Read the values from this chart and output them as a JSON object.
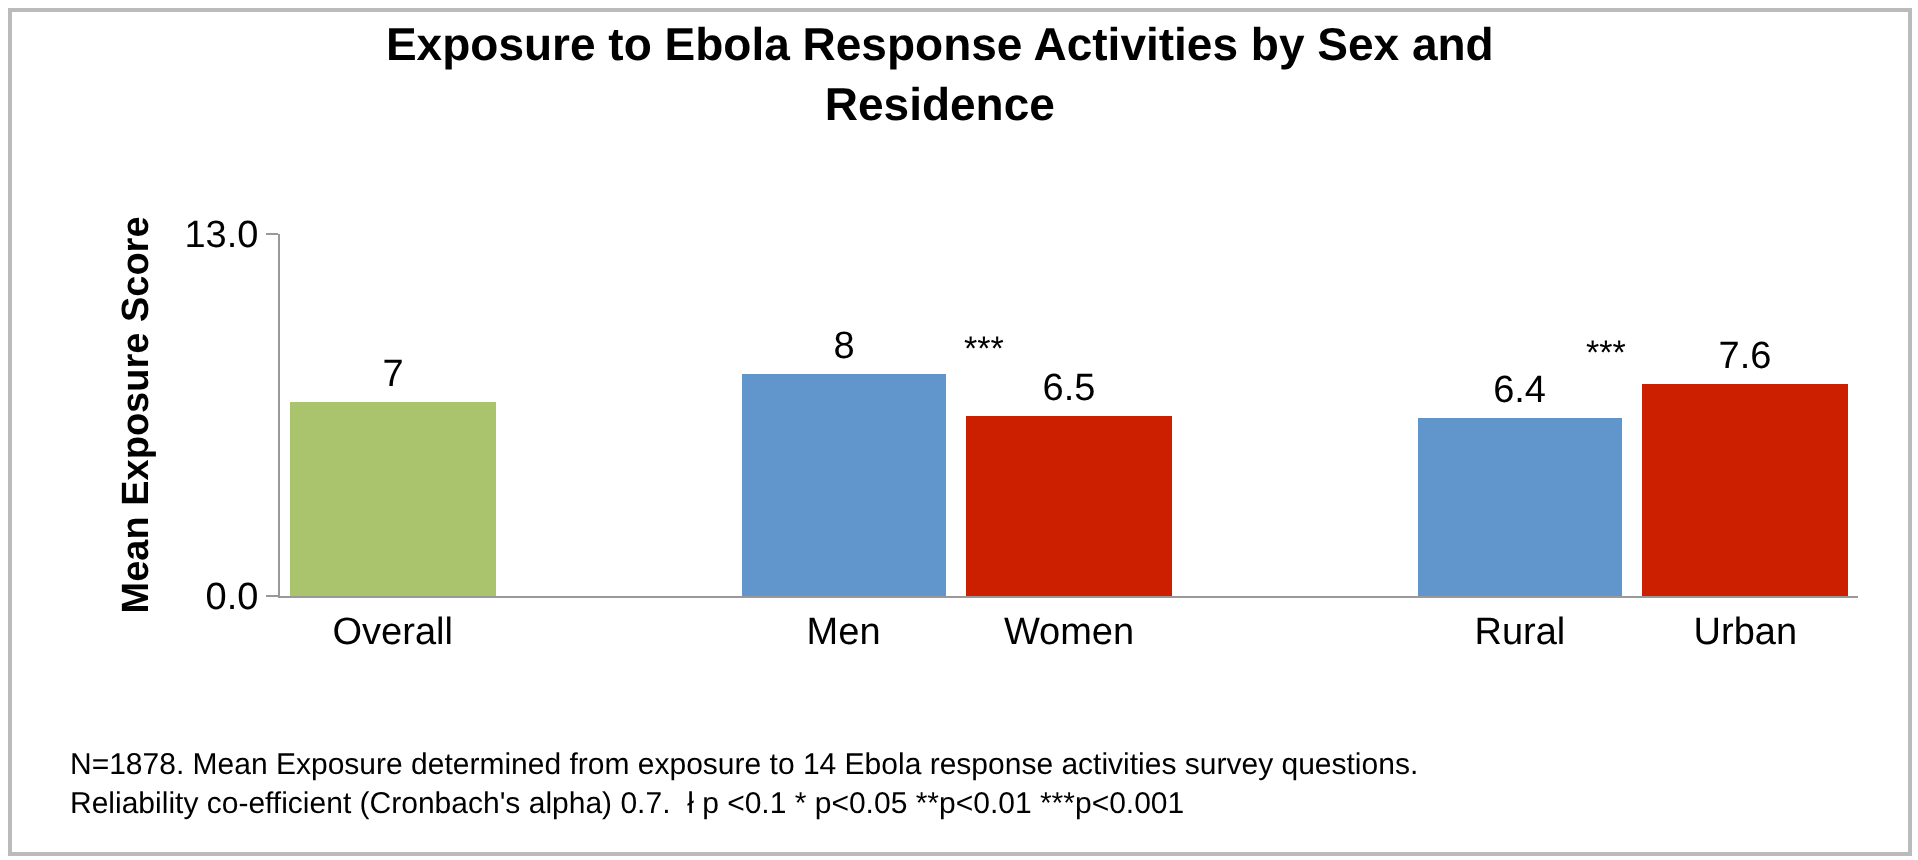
{
  "chart_data": {
    "type": "bar",
    "title": "Exposure to Ebola Response Activities by Sex and Residence",
    "ylabel": "Mean Exposure Score",
    "categories": [
      "Overall",
      null,
      "Men",
      "Women",
      null,
      "Rural",
      "Urban"
    ],
    "values": [
      7,
      null,
      8,
      6.5,
      null,
      6.4,
      7.6
    ],
    "colors": [
      "#a9c46c",
      null,
      "#6096cb",
      "#cc1f00",
      null,
      "#6096cb",
      "#cc1f00"
    ],
    "data_labels": true,
    "ylim": [
      0,
      13
    ],
    "yticks": [
      {
        "value": 0,
        "label": "0.0"
      },
      {
        "value": 13,
        "label": "13.0"
      }
    ],
    "grid": false,
    "annotations": [
      "***",
      "***",
      "N=1878. Mean Exposure determined from exposure to 14 Ebola response activities survey questions.\nReliability co-efficient (Cronbach's alpha) 0.7.  ł p <0.1 * p<0.05 **p<0.01 ***p<0.001"
    ]
  }
}
